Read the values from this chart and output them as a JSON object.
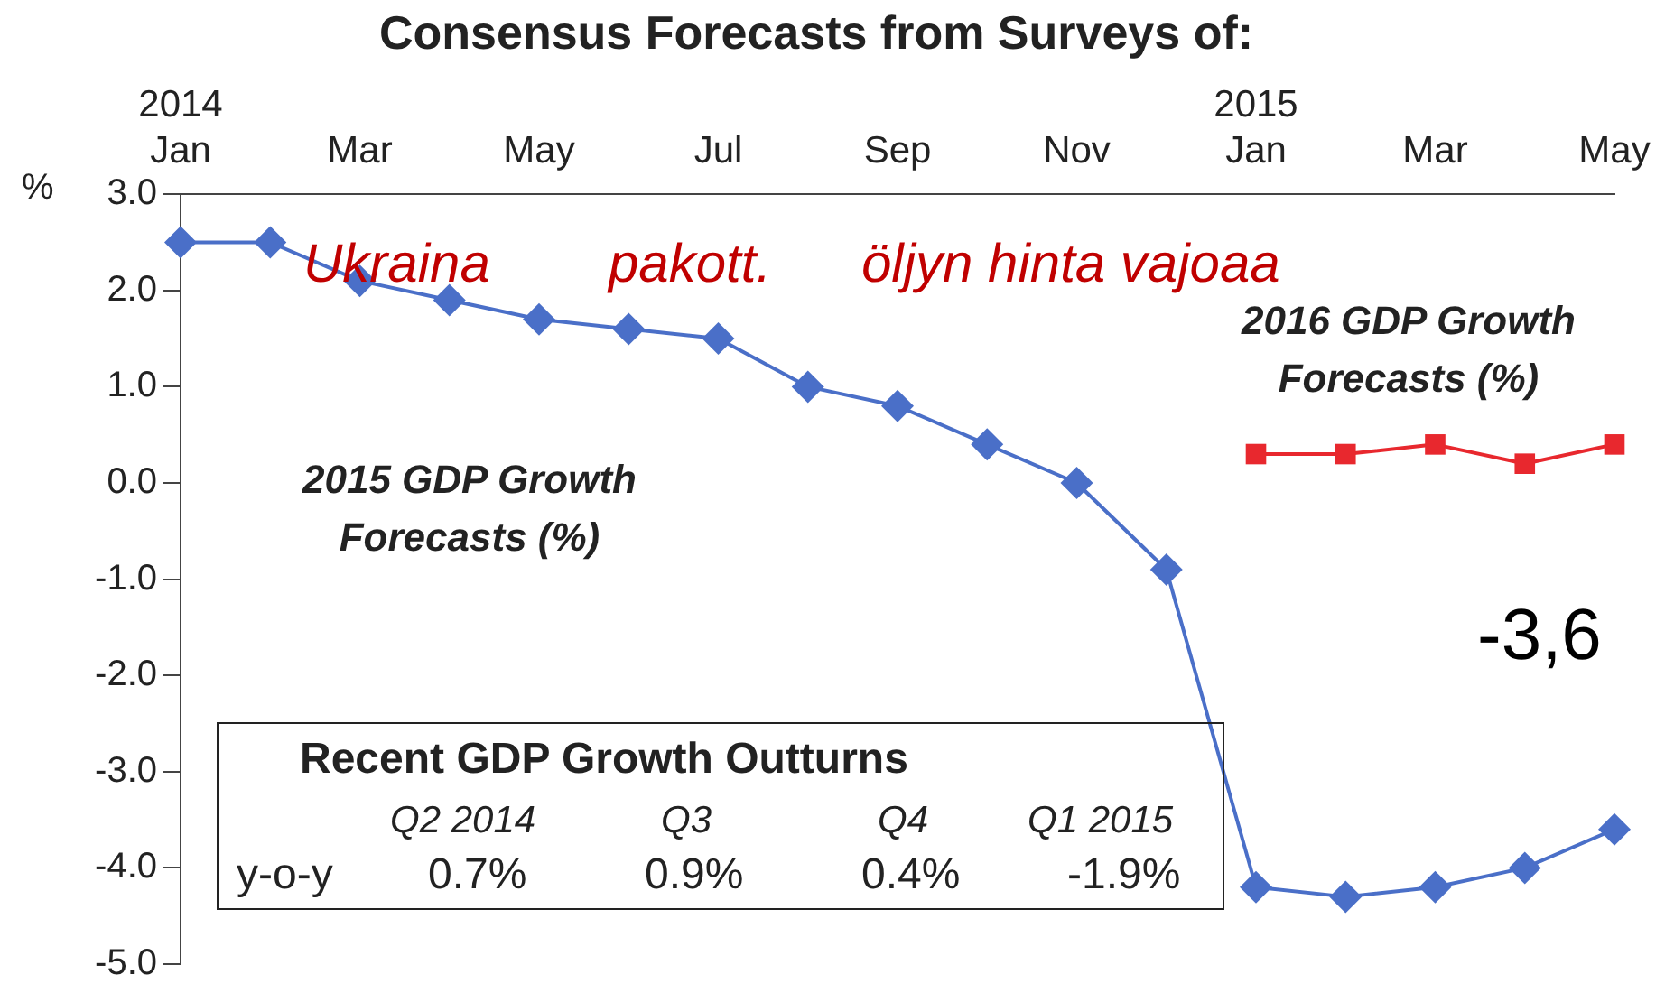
{
  "chart_data": {
    "type": "line",
    "title": "Consensus Forecasts from Surveys of:",
    "ylabel": "%",
    "categories": [
      "2014\nJan",
      null,
      "Mar",
      null,
      "May",
      null,
      "Jul",
      null,
      "Sep",
      null,
      "Nov",
      null,
      "2015\nJan",
      null,
      "Mar",
      null,
      "May"
    ],
    "series": [
      {
        "name": "2015 GDP Growth Forecasts (%)",
        "color": "#4a6fc8",
        "marker": "diamond",
        "values": [
          2.5,
          2.5,
          2.1,
          1.9,
          1.7,
          1.6,
          1.5,
          1.0,
          0.8,
          0.4,
          0.0,
          -0.9,
          -4.2,
          -4.3,
          -4.2,
          -4.0,
          -3.6
        ]
      },
      {
        "name": "2016 GDP Growth Forecasts (%)",
        "color": "#e8282e",
        "marker": "square",
        "values": [
          null,
          null,
          null,
          null,
          null,
          null,
          null,
          null,
          null,
          null,
          null,
          null,
          0.3,
          0.3,
          0.4,
          0.2,
          0.4
        ]
      }
    ],
    "ylim": [
      -5,
      3
    ],
    "yticks": [
      {
        "value": 3,
        "label": "3.0"
      },
      {
        "value": 2,
        "label": "2.0"
      },
      {
        "value": 1,
        "label": "1.0"
      },
      {
        "value": 0,
        "label": "0.0"
      },
      {
        "value": -1,
        "label": "-1.0"
      },
      {
        "value": -2,
        "label": "-2.0"
      },
      {
        "value": -3,
        "label": "-3.0"
      },
      {
        "value": -4,
        "label": "-4.0"
      },
      {
        "value": -5,
        "label": "-5.0"
      }
    ],
    "annotations": [
      "Ukraina",
      "pakott.",
      "öljyn hinta vajoaa",
      "-3,6",
      "Recent GDP Growth Outturns",
      "Q2 2014",
      "Q3",
      "Q4",
      "Q1 2015",
      "y-o-y",
      "0.7%",
      "0.9%",
      "0.4%",
      "-1.9%"
    ],
    "line_style": "solid"
  }
}
